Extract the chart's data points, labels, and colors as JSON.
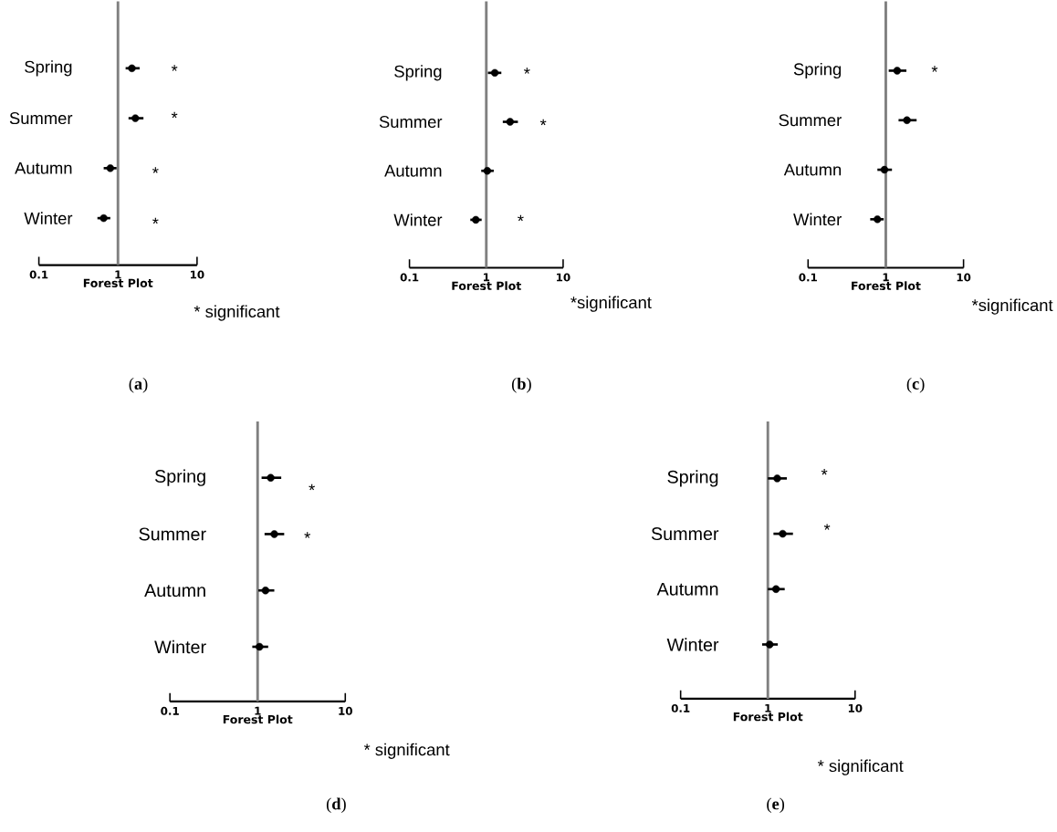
{
  "chart_data": [
    {
      "type": "scatter",
      "orientation": "horizontal",
      "title": "(**a**)",
      "xlabel": "Forest Plot",
      "categories": [
        "Spring",
        "Summer",
        "Autumn",
        "Winter"
      ],
      "values": [
        1.5,
        1.66,
        0.8,
        0.66
      ],
      "errors": [
        [
          1.25,
          1.88
        ],
        [
          1.36,
          2.1
        ],
        [
          0.66,
          0.96
        ],
        [
          0.55,
          0.8
        ]
      ],
      "color": "#000000",
      "marker": "circle",
      "log": "x",
      "xlim": [
        0.1,
        10
      ],
      "xticks": [
        0.1,
        1,
        10
      ],
      "ref_lines": [
        {
          "axis": "x",
          "value": 1,
          "color": "#808080"
        }
      ],
      "annotations": [
        "*",
        "*",
        "*",
        "*",
        "* significant"
      ]
    },
    {
      "type": "scatter",
      "orientation": "horizontal",
      "title": "(**b**)",
      "xlabel": "Forest Plot",
      "categories": [
        "Spring",
        "Summer",
        "Autumn",
        "Winter"
      ],
      "values": [
        1.29,
        2.04,
        1.03,
        0.73
      ],
      "errors": [
        [
          1.05,
          1.57
        ],
        [
          1.64,
          2.58
        ],
        [
          0.86,
          1.25
        ],
        [
          0.62,
          0.87
        ]
      ],
      "color": "#000000",
      "marker": "circle",
      "log": "x",
      "xlim": [
        0.1,
        10
      ],
      "xticks": [
        0.1,
        1,
        10
      ],
      "ref_lines": [
        {
          "axis": "x",
          "value": 1,
          "color": "#808080"
        }
      ],
      "annotations": [
        "*",
        "*",
        "*",
        "*significant"
      ]
    },
    {
      "type": "scatter",
      "orientation": "horizontal",
      "title": "(**c**)",
      "xlabel": "Forest Plot",
      "categories": [
        "Spring",
        "Summer",
        "Autumn",
        "Winter"
      ],
      "values": [
        1.4,
        1.87,
        0.96,
        0.78
      ],
      "errors": [
        [
          1.09,
          1.84
        ],
        [
          1.46,
          2.49
        ],
        [
          0.78,
          1.2
        ],
        [
          0.63,
          0.94
        ]
      ],
      "color": "#000000",
      "marker": "circle",
      "log": "x",
      "xlim": [
        0.1,
        10
      ],
      "xticks": [
        0.1,
        1,
        10
      ],
      "ref_lines": [
        {
          "axis": "x",
          "value": 1,
          "color": "#808080"
        }
      ],
      "annotations": [
        "*",
        "*significant"
      ]
    },
    {
      "type": "scatter",
      "orientation": "horizontal",
      "title": "(**d**)",
      "xlabel": "Forest Plot",
      "categories": [
        "Spring",
        "Summer",
        "Autumn",
        "Winter"
      ],
      "values": [
        1.41,
        1.55,
        1.23,
        1.05
      ],
      "errors": [
        [
          1.11,
          1.86
        ],
        [
          1.2,
          2.01
        ],
        [
          1.02,
          1.55
        ],
        [
          0.87,
          1.32
        ]
      ],
      "color": "#000000",
      "marker": "circle",
      "log": "x",
      "xlim": [
        0.1,
        10
      ],
      "xticks": [
        0.1,
        1,
        10
      ],
      "ref_lines": [
        {
          "axis": "x",
          "value": 1,
          "color": "#808080"
        }
      ],
      "annotations": [
        "*",
        "*",
        "* significant"
      ]
    },
    {
      "type": "scatter",
      "orientation": "horizontal",
      "title": "(**e**)",
      "xlabel": "Forest Plot",
      "categories": [
        "Spring",
        "Summer",
        "Autumn",
        "Winter"
      ],
      "values": [
        1.28,
        1.48,
        1.24,
        1.05
      ],
      "errors": [
        [
          1.0,
          1.65
        ],
        [
          1.16,
          1.94
        ],
        [
          1.0,
          1.56
        ],
        [
          0.86,
          1.3
        ]
      ],
      "color": "#000000",
      "marker": "circle",
      "log": "x",
      "xlim": [
        0.1,
        10
      ],
      "xticks": [
        0.1,
        1,
        10
      ],
      "ref_lines": [
        {
          "axis": "x",
          "value": 1,
          "color": "#808080"
        }
      ],
      "annotations": [
        "*",
        "*",
        "* significant"
      ]
    }
  ]
}
